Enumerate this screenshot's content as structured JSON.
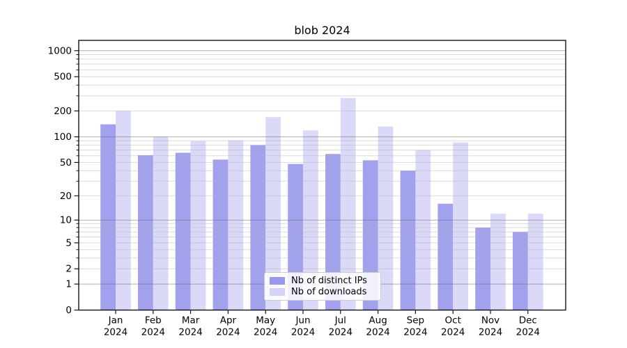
{
  "chart_data": {
    "type": "bar",
    "title": "blob 2024",
    "categories": [
      "Jan",
      "Feb",
      "Mar",
      "Apr",
      "May",
      "Jun",
      "Jul",
      "Aug",
      "Sep",
      "Oct",
      "Nov",
      "Dec"
    ],
    "x_sub_label": "2024",
    "series": [
      {
        "name": "Nb of distinct IPs",
        "color": "#8c8cea",
        "opacity": 0.82,
        "values": [
          140,
          61,
          65,
          54,
          80,
          48,
          63,
          53,
          40,
          16,
          8,
          7
        ]
      },
      {
        "name": "Nb of downloads",
        "color": "#d3d3f7",
        "opacity": 0.85,
        "values": [
          200,
          100,
          89,
          91,
          170,
          119,
          283,
          132,
          70,
          86,
          12,
          12
        ]
      }
    ],
    "ylabel": "",
    "xlabel": "",
    "scale": "log1p",
    "ylim": [
      0,
      1000
    ],
    "yticks": [
      0,
      1,
      2,
      5,
      10,
      20,
      50,
      100,
      200,
      500,
      1000
    ],
    "grid": true,
    "grid_over_bars": true,
    "legend_position": "lower center"
  }
}
